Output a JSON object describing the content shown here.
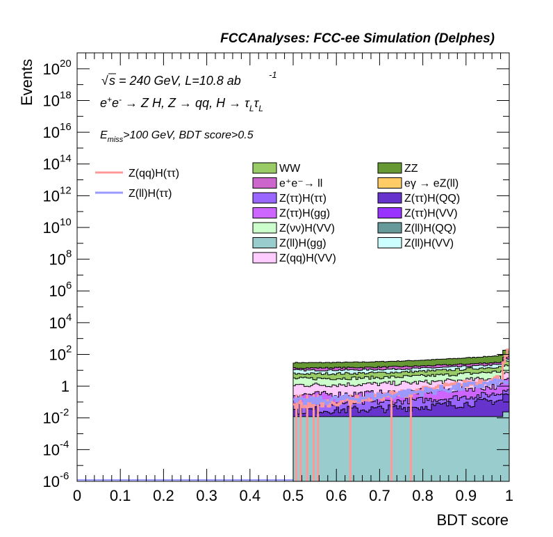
{
  "chart_data": {
    "type": "histogram",
    "title": "FCCAnalyses: FCC-ee Simulation (Delphes)",
    "xlabel": "BDT score",
    "ylabel": "Events",
    "xlim": [
      0,
      1
    ],
    "ylim": [
      1e-06,
      1e+21
    ],
    "yscale": "log",
    "grid": false,
    "x_ticks": [
      "0",
      "0.1",
      "0.2",
      "0.3",
      "0.4",
      "0.5",
      "0.6",
      "0.7",
      "0.8",
      "0.9",
      "1"
    ],
    "y_ticks": [
      {
        "base": "10",
        "exp": "-6",
        "value": 1e-06
      },
      {
        "base": "10",
        "exp": "-4",
        "value": 0.0001
      },
      {
        "base": "10",
        "exp": "-2",
        "value": 0.01
      },
      {
        "base": "1",
        "exp": "",
        "value": 1
      },
      {
        "base": "10",
        "exp": "2",
        "value": 100.0
      },
      {
        "base": "10",
        "exp": "4",
        "value": 10000.0
      },
      {
        "base": "10",
        "exp": "6",
        "value": 1000000.0
      },
      {
        "base": "10",
        "exp": "8",
        "value": 100000000.0
      },
      {
        "base": "10",
        "exp": "10",
        "value": 10000000000.0
      },
      {
        "base": "10",
        "exp": "12",
        "value": 1000000000000.0
      },
      {
        "base": "10",
        "exp": "14",
        "value": 100000000000000.0
      },
      {
        "base": "10",
        "exp": "16",
        "value": 1e+16
      },
      {
        "base": "10",
        "exp": "18",
        "value": 1e+18
      },
      {
        "base": "10",
        "exp": "20",
        "value": 1e+20
      }
    ],
    "annotations": {
      "energy": "√s = 240 GeV, L=10.8 ab",
      "energy_sup": "-1",
      "process": "e⁺e⁻ → Z H, Z → qq, H → τ_L τ_L",
      "process_parts": [
        "e",
        "+",
        "e",
        "-",
        " → Z H, Z  → qq, H  → τ",
        "L",
        "τ",
        "L"
      ],
      "selection_parts": [
        "E",
        "miss",
        ">100 GeV, BDT score>0.5"
      ]
    },
    "signal_series": [
      {
        "name": "Z(qq)H(ττ)",
        "color": "#ff9999",
        "approx_level": [
          0.08,
          0.2,
          0.5,
          1.2,
          3,
          10,
          100
        ]
      },
      {
        "name": "Z(ll)H(ττ)",
        "color": "#9999ff",
        "approx_level": [
          0.1,
          0.3,
          1,
          3
        ]
      }
    ],
    "background_series": [
      {
        "name": "WW",
        "color": "#99cc66"
      },
      {
        "name": "ZZ",
        "color": "#669933"
      },
      {
        "name": "e⁺e⁻→ ll",
        "color": "#cc66cc"
      },
      {
        "name": "eγ → eZ(ll)",
        "color": "#ffcc66"
      },
      {
        "name": "Z(ττ)H(ττ)",
        "color": "#9966ff"
      },
      {
        "name": "Z(ττ)H(QQ)",
        "color": "#6633cc"
      },
      {
        "name": "Z(ττ)H(gg)",
        "color": "#cc66ff"
      },
      {
        "name": "Z(ττ)H(VV)",
        "color": "#9933ff"
      },
      {
        "name": "Z(νν)H(VV)",
        "color": "#ccffcc"
      },
      {
        "name": "Z(ll)H(QQ)",
        "color": "#669999"
      },
      {
        "name": "Z(ll)H(gg)",
        "color": "#99cccc"
      },
      {
        "name": "Z(ll)H(VV)",
        "color": "#ccffff"
      },
      {
        "name": "Z(qq)H(VV)",
        "color": "#ffccff"
      }
    ],
    "stack_levels_approx": {
      "x_start": 0.5,
      "total_near_0.5": 30,
      "total_near_1.0": 150,
      "teal_base": 0.01
    },
    "legend_placement": "top-center"
  }
}
